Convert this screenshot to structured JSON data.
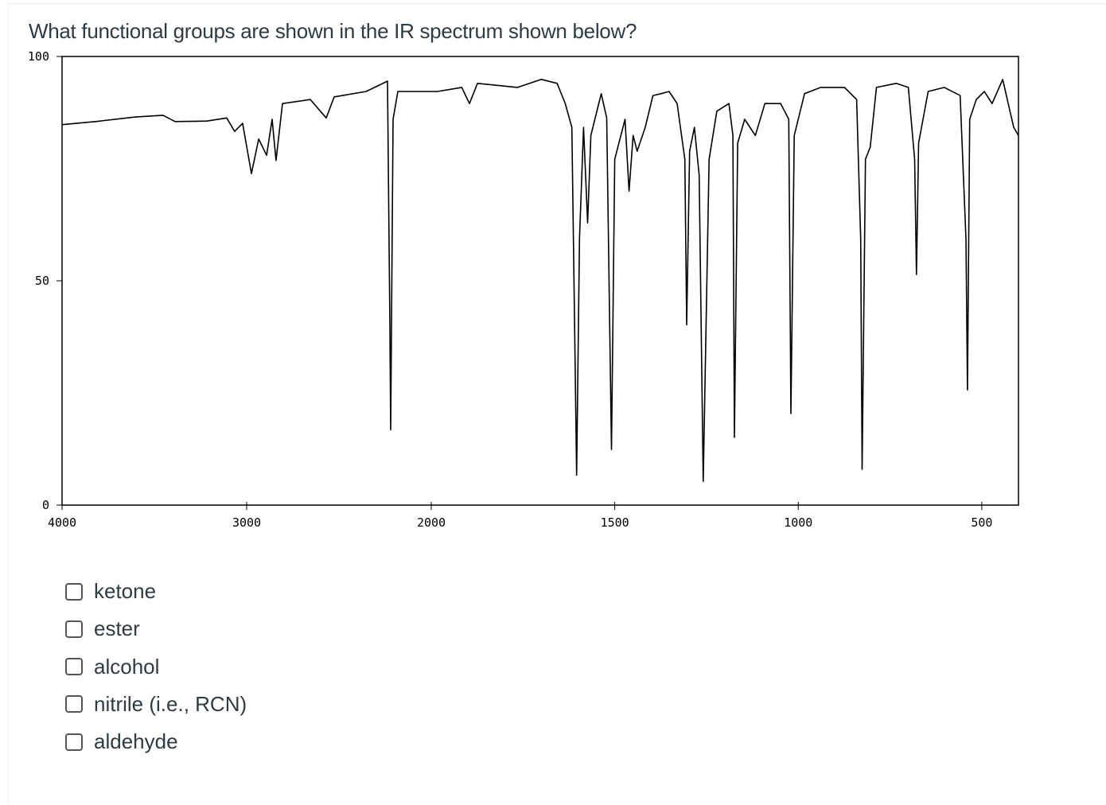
{
  "question": "What functional groups are shown in the IR spectrum shown below?",
  "chart_data": {
    "type": "line",
    "x": [
      4000,
      3819,
      3603,
      3453,
      3388,
      3216,
      3108,
      3065,
      3022,
      2974,
      2935,
      2892,
      2862,
      2841,
      2806,
      2655,
      2569,
      2526,
      2353,
      2237,
      2224,
      2220,
      2207,
      2181,
      1983,
      1917,
      1896,
      1874,
      1765,
      1700,
      1657,
      1635,
      1617,
      1609,
      1604,
      1596,
      1585,
      1574,
      1565,
      1537,
      1522,
      1509,
      1500,
      1472,
      1461,
      1450,
      1439,
      1417,
      1396,
      1374,
      1352,
      1330,
      1309,
      1304,
      1296,
      1283,
      1270,
      1259,
      1243,
      1222,
      1189,
      1178,
      1174,
      1165,
      1146,
      1117,
      1091,
      1048,
      1026,
      1020,
      1011,
      983,
      939,
      874,
      841,
      830,
      826,
      817,
      804,
      787,
      733,
      700,
      683,
      678,
      672,
      646,
      602,
      559,
      543,
      539,
      533,
      515,
      493,
      472,
      443,
      428,
      413,
      400
    ],
    "values": [
      84.8,
      85.5,
      86.5,
      86.9,
      85.5,
      85.6,
      86.3,
      83.3,
      85.1,
      73.9,
      81.6,
      78.0,
      86.0,
      76.8,
      89.5,
      90.4,
      86.3,
      91.0,
      92.2,
      94.5,
      39.9,
      16.8,
      86.0,
      92.2,
      92.2,
      93.1,
      89.5,
      94.0,
      93.1,
      94.9,
      94.0,
      89.5,
      84.2,
      38.1,
      6.7,
      59.4,
      84.2,
      62.9,
      82.4,
      91.7,
      86.3,
      12.4,
      77.1,
      86.0,
      70.0,
      82.4,
      78.9,
      84.2,
      91.3,
      91.7,
      92.2,
      89.5,
      77.1,
      40.2,
      78.9,
      84.2,
      73.6,
      5.3,
      77.1,
      87.8,
      89.5,
      82.4,
      15.1,
      80.7,
      86.0,
      82.4,
      89.5,
      89.5,
      86.0,
      20.4,
      82.4,
      91.7,
      93.1,
      93.1,
      90.4,
      59.4,
      8.0,
      77.1,
      79.8,
      93.1,
      94.0,
      93.1,
      77.1,
      51.4,
      80.7,
      92.2,
      93.1,
      91.3,
      59.4,
      25.7,
      86.0,
      90.4,
      92.2,
      89.5,
      94.9,
      89.5,
      84.2,
      82.4
    ],
    "color": "#000000",
    "xlim": [
      4000,
      400
    ],
    "x_scale_change": 2000,
    "xticks": [
      4000,
      3000,
      2000,
      1500,
      1000,
      500
    ],
    "ylim": [
      0,
      100
    ],
    "yticks": [
      0,
      50,
      100
    ]
  },
  "options": [
    "ketone",
    "ester",
    "alcohol",
    "nitrile (i.e., RCN)",
    "aldehyde"
  ]
}
